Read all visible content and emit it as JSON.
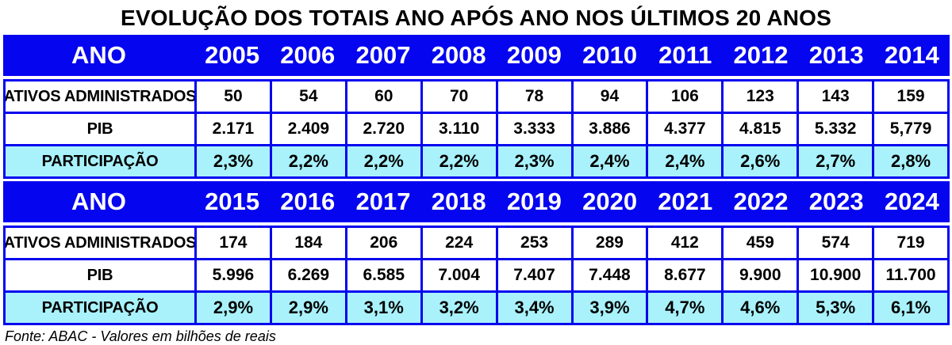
{
  "title": "EVOLUÇÃO DOS TOTAIS ANO APÓS ANO NOS ÚLTIMOS 20 ANOS",
  "footer": "Fonte: ABAC - Valores em bilhões de reais",
  "colors": {
    "header_bg": "#0505ef",
    "border": "#0505ef",
    "participacao_bg": "#a9f2fb",
    "header_text": "#ffffff",
    "body_text": "#000000"
  },
  "sections": [
    {
      "year_label": "ANO",
      "years": [
        "2005",
        "2006",
        "2007",
        "2008",
        "2009",
        "2010",
        "2011",
        "2012",
        "2013",
        "2014"
      ],
      "rows": [
        {
          "label": "ATIVOS ADMINISTRADOS",
          "values": [
            "50",
            "54",
            "60",
            "70",
            "78",
            "94",
            "106",
            "123",
            "143",
            "159"
          ]
        },
        {
          "label": "PIB",
          "values": [
            "2.171",
            "2.409",
            "2.720",
            "3.110",
            "3.333",
            "3.886",
            "4.377",
            "4.815",
            "5.332",
            "5,779"
          ]
        },
        {
          "label": "PARTICIPAÇÃO",
          "values": [
            "2,3%",
            "2,2%",
            "2,2%",
            "2,2%",
            "2,3%",
            "2,4%",
            "2,4%",
            "2,6%",
            "2,7%",
            "2,8%"
          ]
        }
      ]
    },
    {
      "year_label": "ANO",
      "years": [
        "2015",
        "2016",
        "2017",
        "2018",
        "2019",
        "2020",
        "2021",
        "2022",
        "2023",
        "2024"
      ],
      "rows": [
        {
          "label": "ATIVOS ADMINISTRADOS",
          "values": [
            "174",
            "184",
            "206",
            "224",
            "253",
            "289",
            "412",
            "459",
            "574",
            "719"
          ]
        },
        {
          "label": "PIB",
          "values": [
            "5.996",
            "6.269",
            "6.585",
            "7.004",
            "7.407",
            "7.448",
            "8.677",
            "9.900",
            "10.900",
            "11.700"
          ]
        },
        {
          "label": "PARTICIPAÇÃO",
          "values": [
            "2,9%",
            "2,9%",
            "3,1%",
            "3,2%",
            "3,4%",
            "3,9%",
            "4,7%",
            "4,6%",
            "5,3%",
            "6,1%"
          ]
        }
      ]
    }
  ],
  "chart_data": {
    "type": "table",
    "title": "EVOLUÇÃO DOS TOTAIS ANO APÓS ANO NOS ÚLTIMOS 20 ANOS",
    "source": "Fonte: ABAC - Valores em bilhões de reais",
    "unit": "bilhões de reais",
    "years": [
      2005,
      2006,
      2007,
      2008,
      2009,
      2010,
      2011,
      2012,
      2013,
      2014,
      2015,
      2016,
      2017,
      2018,
      2019,
      2020,
      2021,
      2022,
      2023,
      2024
    ],
    "series": [
      {
        "name": "ATIVOS ADMINISTRADOS",
        "values": [
          50,
          54,
          60,
          70,
          78,
          94,
          106,
          123,
          143,
          159,
          174,
          184,
          206,
          224,
          253,
          289,
          412,
          459,
          574,
          719
        ]
      },
      {
        "name": "PIB",
        "values": [
          2171,
          2409,
          2720,
          3110,
          3333,
          3886,
          4377,
          4815,
          5332,
          5779,
          5996,
          6269,
          6585,
          7004,
          7407,
          7448,
          8677,
          9900,
          10900,
          11700
        ]
      },
      {
        "name": "PARTICIPAÇÃO (%)",
        "values": [
          2.3,
          2.2,
          2.2,
          2.2,
          2.3,
          2.4,
          2.4,
          2.6,
          2.7,
          2.8,
          2.9,
          2.9,
          3.1,
          3.2,
          3.4,
          3.9,
          4.7,
          4.6,
          5.3,
          6.1
        ]
      }
    ]
  }
}
